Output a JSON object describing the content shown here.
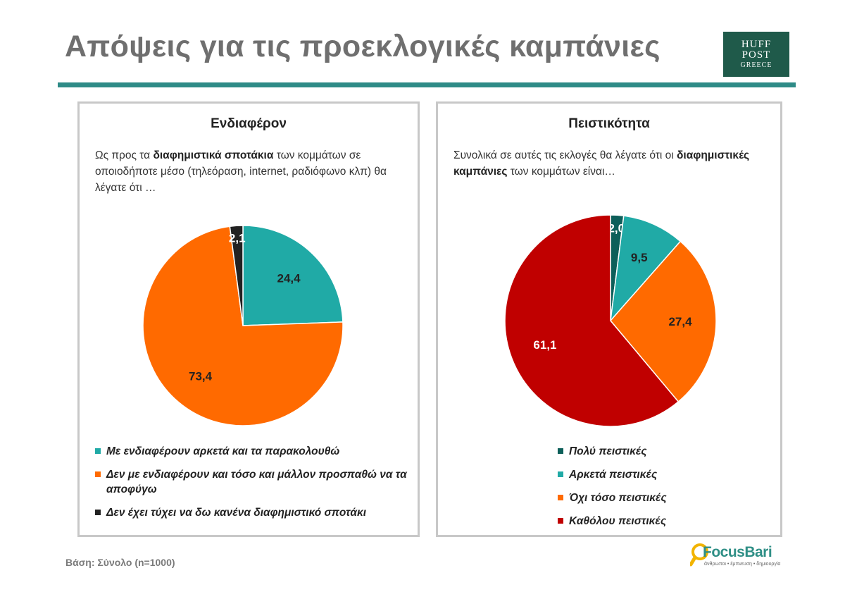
{
  "header": {
    "title": "Απόψεις για τις προεκλογικές καμπάνιες",
    "logo": {
      "line1": "HUFF",
      "line2": "POST",
      "line3": "GREECE",
      "bg_color": "#1f5a4a"
    },
    "rule_color": "#2e8b87"
  },
  "left_panel": {
    "title": "Ενδιαφέρον",
    "question": {
      "pre": "Ως προς τα ",
      "bold": "διαφημιστικά σποτάκια",
      "post": " των κομμάτων σε οποιοδήποτε μέσο (τηλεόραση, internet, ραδιόφωνο κλπ) θα λέγατε ότι …"
    }
  },
  "right_panel": {
    "title": "Πειστικότητα",
    "question": {
      "pre": "Συνολικά σε αυτές τις εκλογές θα λέγατε ότι οι ",
      "bold": "διαφημιστικές καμπάνιες",
      "post": " των κομμάτων είναι…"
    }
  },
  "chart_data": [
    {
      "type": "pie",
      "title": "Ενδιαφέρον",
      "categories": [
        "Με ενδιαφέρουν αρκετά και τα παρακολουθώ",
        "Δεν με ενδιαφέρουν και τόσο και μάλλον προσπαθώ να τα αποφύγω",
        "Δεν έχει τύχει να δω κανένα διαφημιστικό σποτάκι"
      ],
      "values": [
        24.4,
        73.4,
        2.1
      ],
      "labels": [
        "24,4",
        "73,4",
        "2,1"
      ],
      "colors": [
        "#20aaa6",
        "#ff6a00",
        "#222222"
      ],
      "label_colors": [
        "#222222",
        "#222222",
        "#ffffff"
      ],
      "legend_position": "bottom"
    },
    {
      "type": "pie",
      "title": "Πειστικότητα",
      "categories": [
        "Πολύ πειστικές",
        "Αρκετά πειστικές",
        "Όχι τόσο πειστικές",
        "Καθόλου πειστικές"
      ],
      "values": [
        2.0,
        9.5,
        27.4,
        61.1
      ],
      "labels": [
        "2,0",
        "9,5",
        "27,4",
        "61,1"
      ],
      "colors": [
        "#0d5f5a",
        "#20aaa6",
        "#ff6a00",
        "#c00000"
      ],
      "label_colors": [
        "#ffffff",
        "#222222",
        "#222222",
        "#ffffff"
      ],
      "legend_position": "bottom"
    }
  ],
  "footer": {
    "base_note": "Βάση: Σύνολο (n=1000)",
    "brand": "FocusBari",
    "tagline": "άνθρωποι • έμπνευση • δημιουργία"
  }
}
